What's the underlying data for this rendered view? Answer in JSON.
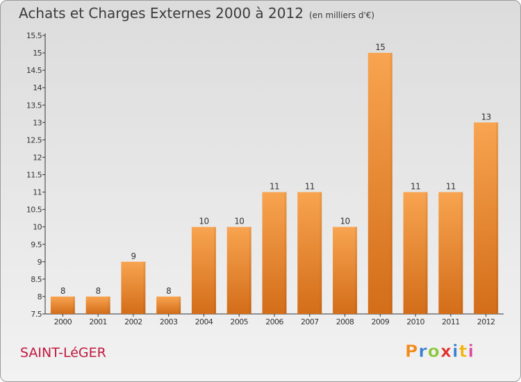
{
  "header": {
    "title": "Achats et Charges Externes 2000 à 2012",
    "unit": "(en milliers d'€)"
  },
  "footer": {
    "commune": "SAINT-LéGER",
    "logo": "Proxiti"
  },
  "colors": {
    "bar_top": "#f8a450",
    "bar_bottom": "#d36d19",
    "axis": "#333333",
    "commune": "#c0183d",
    "logo_letters": [
      "#f08a1c",
      "#3a7fd0",
      "#8cc43c",
      "#e0302c",
      "#3a7fd0",
      "#f0b414",
      "#d84c9c"
    ]
  },
  "chart_data": {
    "type": "bar",
    "title": "Achats et Charges Externes 2000 à 2012",
    "subtitle": "(en milliers d'€)",
    "categories": [
      "2000",
      "2001",
      "2002",
      "2003",
      "2004",
      "2005",
      "2006",
      "2007",
      "2008",
      "2009",
      "2010",
      "2011",
      "2012"
    ],
    "values": [
      8,
      8,
      9,
      8,
      10,
      10,
      11,
      11,
      10,
      15,
      11,
      11,
      13
    ],
    "data_labels": [
      "8",
      "8",
      "9",
      "8",
      "10",
      "10",
      "11",
      "11",
      "10",
      "15",
      "11",
      "11",
      "13"
    ],
    "ylim": [
      7.5,
      15.5
    ],
    "yticks": [
      "7.5",
      "8",
      "8.5",
      "9",
      "9.5",
      "10",
      "10.5",
      "11",
      "11.5",
      "12",
      "12.5",
      "13",
      "13.5",
      "14",
      "14.5",
      "15",
      "15.5"
    ],
    "xlabel": "",
    "ylabel": "",
    "grid": false,
    "legend": "none"
  }
}
